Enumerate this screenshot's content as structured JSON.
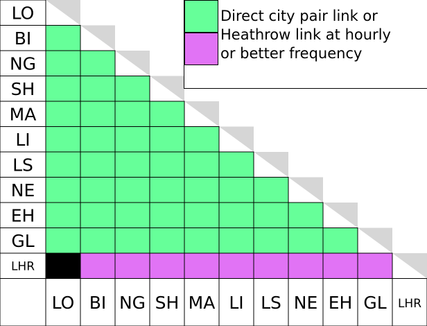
{
  "colors": {
    "direct": "#66ff99",
    "heathrow": "#e173f5",
    "self": "#000000",
    "shade": "#d6d6d6",
    "border": "#000000",
    "background": "#ffffff"
  },
  "matrix": {
    "row_labels": [
      "LO",
      "BI",
      "NG",
      "SH",
      "MA",
      "LI",
      "LS",
      "NE",
      "EH",
      "GL",
      "LHR"
    ],
    "column_labels": [
      "LO",
      "BI",
      "NG",
      "SH",
      "MA",
      "LI",
      "LS",
      "NE",
      "EH",
      "GL",
      "LHR"
    ],
    "heathrow_row_label": "LHR"
  },
  "legend": {
    "lines": [
      "Direct city pair link or",
      "Heathrow link at hourly",
      "or better frequency"
    ],
    "swatches": [
      {
        "name": "direct",
        "color": "#66ff99"
      },
      {
        "name": "heathrow",
        "color": "#e173f5"
      }
    ]
  }
}
